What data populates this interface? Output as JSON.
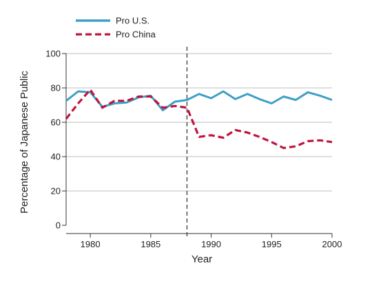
{
  "chart_data": {
    "type": "line",
    "title": "",
    "xlabel": "Year",
    "ylabel": "Percentage of Japanese Public",
    "xlim": [
      1978,
      2000
    ],
    "ylim": [
      0,
      100
    ],
    "xticks": [
      1980,
      1985,
      1990,
      1995,
      2000
    ],
    "yticks": [
      0,
      20,
      40,
      60,
      80,
      100
    ],
    "grid": "horizontal",
    "legend_position": "top-left",
    "reference_line": {
      "x": 1988,
      "style": "dashed"
    },
    "series": [
      {
        "name": "Pro U.S.",
        "color": "#3d9fc7",
        "style": "solid",
        "x": [
          1978,
          1979,
          1980,
          1981,
          1982,
          1983,
          1984,
          1985,
          1986,
          1987,
          1988,
          1989,
          1990,
          1991,
          1992,
          1993,
          1994,
          1995,
          1996,
          1997,
          1998,
          1999,
          2000
        ],
        "y": [
          72.5,
          78,
          77.5,
          69,
          71,
          71.5,
          74.5,
          75.5,
          67,
          72,
          73,
          76.5,
          74,
          78,
          73.5,
          76.5,
          73.5,
          71,
          75,
          73,
          77.5,
          75.5,
          73
        ]
      },
      {
        "name": "Pro China",
        "color": "#c0143c",
        "style": "dashed",
        "x": [
          1978,
          1979,
          1980,
          1981,
          1982,
          1983,
          1984,
          1985,
          1986,
          1987,
          1988,
          1989,
          1990,
          1991,
          1992,
          1993,
          1994,
          1995,
          1996,
          1997,
          1998,
          1999,
          2000
        ],
        "y": [
          62,
          71,
          79,
          68.5,
          72.5,
          72.5,
          75,
          75,
          68.5,
          69.5,
          68.5,
          51.5,
          52.5,
          51,
          55.5,
          54,
          51.5,
          48.5,
          45,
          46,
          49,
          49.5,
          48.5
        ]
      }
    ]
  }
}
